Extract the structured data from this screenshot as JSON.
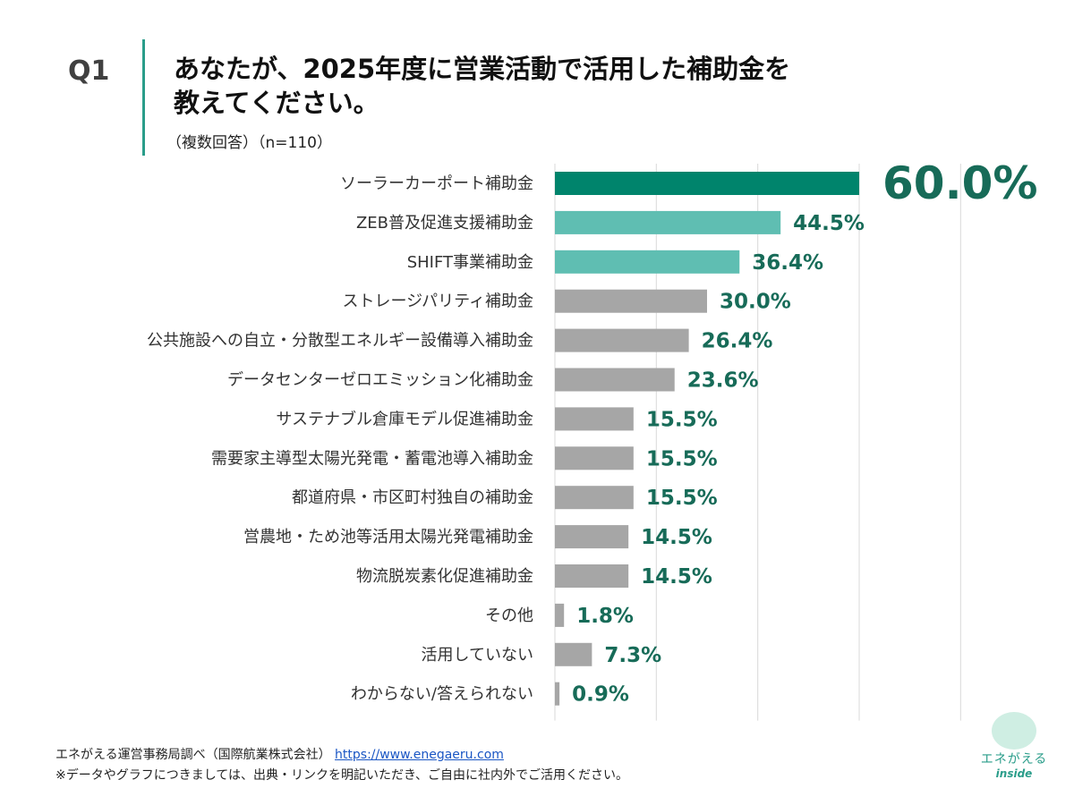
{
  "header": {
    "question_no": "Q1",
    "title_line1": "あなたが、2025年度に営業活動で活用した補助金を",
    "title_line2": "教えてください。",
    "subtitle": "（複数回答）（n=110）"
  },
  "chart_data": {
    "type": "bar",
    "orientation": "horizontal",
    "unit": "%",
    "xlim": [
      0,
      80
    ],
    "grid": true,
    "categories": [
      "ソーラーカーポート補助金",
      "ZEB普及促進支援補助金",
      "SHIFT事業補助金",
      "ストレージパリティ補助金",
      "公共施設への自立・分散型エネルギー設備導入補助金",
      "データセンターゼロエミッション化補助金",
      "サステナブル倉庫モデル促進補助金",
      "需要家主導型太陽光発電・蓄電池導入補助金",
      "都道府県・市区町村独自の補助金",
      "営農地・ため池等活用太陽光発電補助金",
      "物流脱炭素化促進補助金",
      "その他",
      "活用していない",
      "わからない/答えられない"
    ],
    "values": [
      60.0,
      44.5,
      36.4,
      30.0,
      26.4,
      23.6,
      15.5,
      15.5,
      15.5,
      14.5,
      14.5,
      1.8,
      7.3,
      0.9
    ],
    "data_labels": [
      "60.0%",
      "44.5%",
      "36.4%",
      "30.0%",
      "26.4%",
      "23.6%",
      "15.5%",
      "15.5%",
      "15.5%",
      "14.5%",
      "14.5%",
      "1.8%",
      "7.3%",
      "0.9%"
    ],
    "colors": [
      "#00846c",
      "#5fbeb2",
      "#5fbeb2",
      "#a6a6a6",
      "#a6a6a6",
      "#a6a6a6",
      "#a6a6a6",
      "#a6a6a6",
      "#a6a6a6",
      "#a6a6a6",
      "#a6a6a6",
      "#a6a6a6",
      "#a6a6a6",
      "#a6a6a6"
    ],
    "label_color": "#176b58"
  },
  "footer": {
    "source": "エネがえる運営事務局調べ（国際航業株式会社）",
    "url": "https://www.enegaeru.com",
    "note": "※データやグラフにつきましては、出典・リンクを明記いただき、ご自由に社内外でご活用ください。"
  },
  "logo": {
    "text": "エネがえる",
    "sub": "inside"
  }
}
